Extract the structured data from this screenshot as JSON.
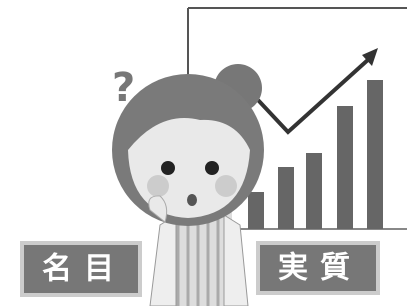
{
  "question_mark": "?",
  "labels": {
    "left": "名目",
    "right": "実質"
  }
}
